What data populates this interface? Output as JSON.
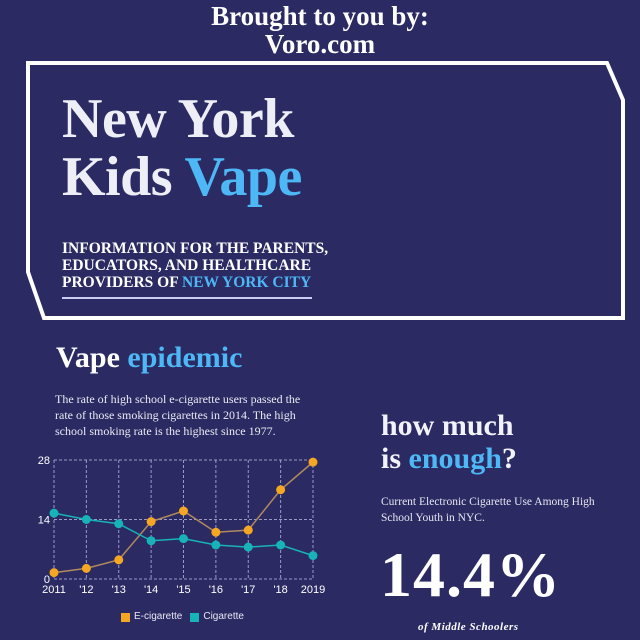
{
  "header": {
    "brought_line1": "Brought to you by:",
    "brought_line2": "Voro.com"
  },
  "hero": {
    "title_line1": "New York",
    "title_line2_part1": "Kids ",
    "title_line2_accent": "Vape",
    "subtitle_line1": "INFORMATION FOR THE PARENTS,",
    "subtitle_line2": "EDUCATORS, AND HEALTHCARE",
    "subtitle_line3_part1": "PROVIDERS OF ",
    "subtitle_line3_accent": "NEW YORK CITY"
  },
  "epidemic": {
    "title_part1": "Vape ",
    "title_accent": "epidemic",
    "description": "The rate of high school e-cigarette users passed the rate of those smoking cigarettes in 2014. The high school smoking rate is the highest since 1977."
  },
  "enough": {
    "title_line1": "how much",
    "title_line2_part1": "is ",
    "title_line2_accent": "enough",
    "title_line2_end": "?",
    "description": "Current Electronic Cigarette Use Among High School Youth in NYC.",
    "stat_value": "14.4%",
    "stat_caption": "of Middle Schoolers"
  },
  "colors": {
    "background": "#2b2a63",
    "accent_blue": "#4db8f5",
    "ecig_orange": "#f5a623",
    "cig_teal": "#17b3b8",
    "frame_white": "#ffffff"
  },
  "chart_data": {
    "type": "line",
    "title": "",
    "xlabel": "",
    "ylabel": "",
    "categories": [
      "2011",
      "'12",
      "'13",
      "'14",
      "'15",
      "'16",
      "'17",
      "'18",
      "2019"
    ],
    "yticks": [
      "0",
      "14",
      "28"
    ],
    "ylim": [
      0,
      28
    ],
    "grid": true,
    "legend_position": "bottom",
    "series": [
      {
        "name": "E-cigarette",
        "color": "#f5a623",
        "values": [
          1.5,
          2.5,
          4.5,
          13.5,
          16,
          11,
          11.5,
          21,
          27.5
        ]
      },
      {
        "name": "Cigarette",
        "color": "#17b3b8",
        "values": [
          15.5,
          14,
          13,
          9,
          9.5,
          8,
          7.5,
          8,
          5.5
        ]
      }
    ]
  }
}
